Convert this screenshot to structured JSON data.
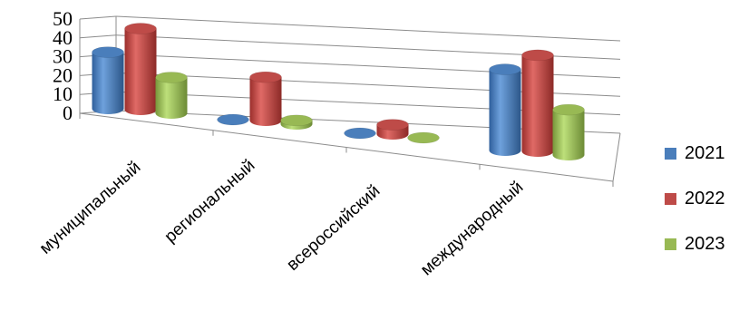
{
  "chart_data": {
    "type": "bar",
    "categories": [
      "муниципальный",
      "региональный",
      "всероссийский",
      "международный"
    ],
    "series": [
      {
        "name": "2021",
        "values": [
          30,
          0,
          0,
          43
        ],
        "color": "#4a7ebb"
      },
      {
        "name": "2022",
        "values": [
          43,
          23,
          5,
          51
        ],
        "color": "#be4b48"
      },
      {
        "name": "2023",
        "values": [
          19,
          2,
          0,
          24
        ],
        "color": "#98b954"
      }
    ],
    "y_ticks": [
      "0",
      "10",
      "20",
      "30",
      "40",
      "50"
    ],
    "ylim": [
      0,
      50
    ],
    "grid": true,
    "legend_position": "right",
    "style": "3d cylinder"
  }
}
